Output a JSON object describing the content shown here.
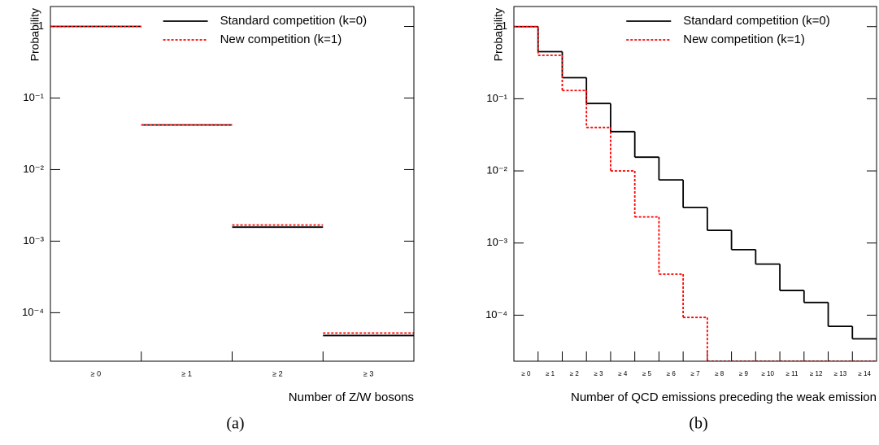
{
  "chart_data": [
    {
      "type": "step",
      "caption": "(a)",
      "x_label": "Number of Z/W bosons",
      "y_label": "Probability",
      "categories": [
        "≥ 0",
        "≥ 1",
        "≥ 2",
        "≥ 3"
      ],
      "series": [
        {
          "name": "Standard competition (k=0)",
          "color": "#000000",
          "linestyle": "solid",
          "values": [
            1,
            0.042,
            0.00157,
            4.8e-05
          ]
        },
        {
          "name": "New competition (k=1)",
          "color": "#ff0000",
          "linestyle": "dashed",
          "values": [
            1,
            0.042,
            0.00168,
            5.2e-05
          ]
        }
      ],
      "log_y": true,
      "steps": false,
      "legend": "upper right",
      "ylim": [
        2.1e-05,
        1.9
      ],
      "yticks": [
        {
          "value": 1,
          "label": "1"
        },
        {
          "value": 0.1,
          "label": "10⁻¹"
        },
        {
          "value": 0.01,
          "label": "10⁻²"
        },
        {
          "value": 0.001,
          "label": "10⁻³"
        },
        {
          "value": 0.0001,
          "label": "10⁻⁴"
        }
      ]
    },
    {
      "type": "step",
      "caption": "(b)",
      "x_label": "Number of QCD emissions preceding the weak emission",
      "y_label": "Probability",
      "categories": [
        "≥ 0",
        "≥ 1",
        "≥ 2",
        "≥ 3",
        "≥ 4",
        "≥ 5",
        "≥ 6",
        "≥ 7",
        "≥ 8",
        "≥ 9",
        "≥ 10",
        "≥ 11",
        "≥ 12",
        "≥ 13",
        "≥ 14"
      ],
      "series": [
        {
          "name": "Standard competition (k=0)",
          "color": "#000000",
          "linestyle": "solid",
          "values": [
            1,
            0.45,
            0.196,
            0.086,
            0.035,
            0.0155,
            0.0075,
            0.0031,
            0.0015,
            0.00081,
            0.00051,
            0.00022,
            0.00015,
            7e-05,
            4.7e-05
          ]
        },
        {
          "name": "New competition (k=1)",
          "color": "#ff0000",
          "linestyle": "dashed",
          "values": [
            1,
            0.4,
            0.13,
            0.04,
            0.01,
            0.0023,
            0.00037,
            9.3e-05,
            0,
            0,
            0,
            0,
            0,
            0,
            0
          ]
        }
      ],
      "log_y": true,
      "steps": true,
      "legend": "upper right",
      "ylim": [
        2.3e-05,
        1.9
      ],
      "yticks": [
        {
          "value": 1,
          "label": "1"
        },
        {
          "value": 0.1,
          "label": "10⁻¹"
        },
        {
          "value": 0.01,
          "label": "10⁻²"
        },
        {
          "value": 0.001,
          "label": "10⁻³"
        },
        {
          "value": 0.0001,
          "label": "10⁻⁴"
        }
      ]
    }
  ]
}
